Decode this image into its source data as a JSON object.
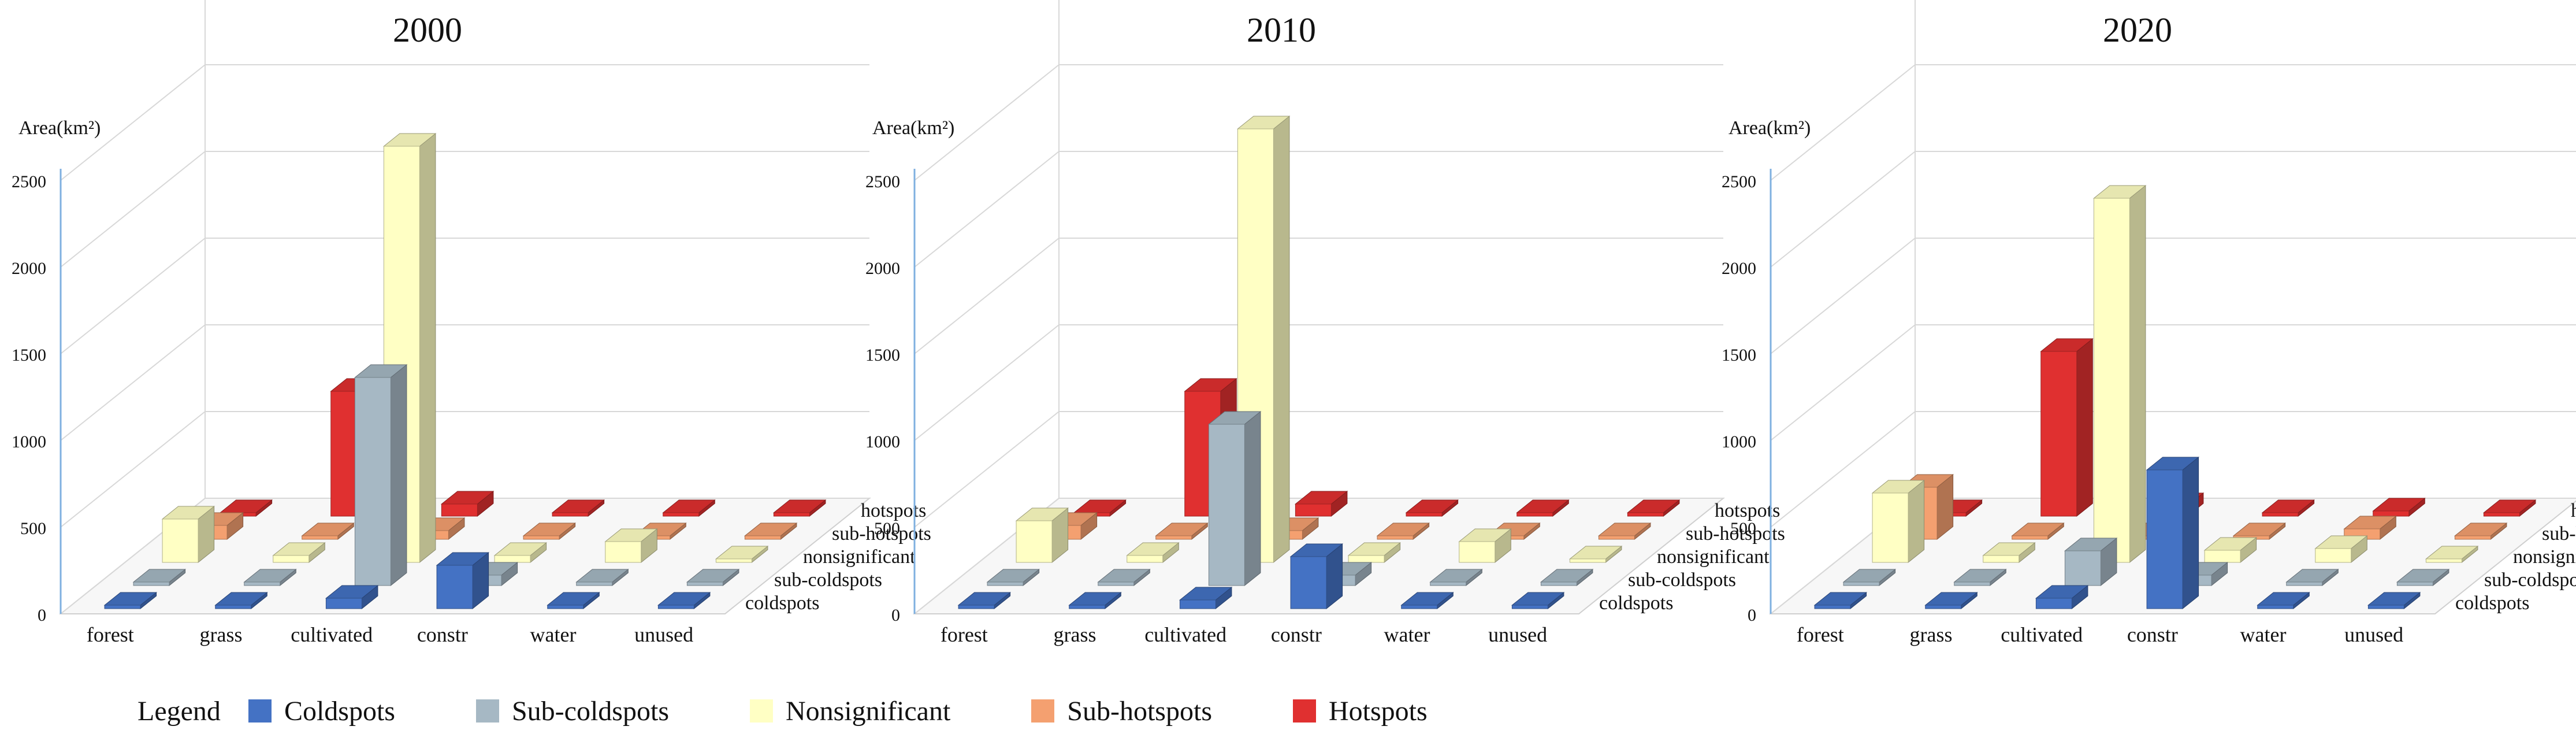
{
  "chart_data": [
    {
      "type": "bar",
      "title": "2000",
      "ylabel": "Area(km²)",
      "ylim": [
        0,
        2500
      ],
      "yticks": [
        0,
        500,
        1000,
        1500,
        2000,
        2500
      ],
      "categories": [
        "forest",
        "grass",
        "cultivated",
        "constr",
        "water",
        "unused"
      ],
      "depth_categories": [
        "coldspots",
        "sub-coldspots",
        "nonsignificant",
        "sub-hotspots",
        "hotspots"
      ],
      "series": [
        {
          "name": "Coldspots",
          "values": [
            5,
            5,
            60,
            250,
            5,
            5
          ]
        },
        {
          "name": "Sub-coldspots",
          "values": [
            5,
            5,
            1200,
            60,
            5,
            5
          ]
        },
        {
          "name": "Nonsignificant",
          "values": [
            250,
            40,
            2400,
            40,
            120,
            20
          ]
        },
        {
          "name": "Sub-hotspots",
          "values": [
            80,
            15,
            50,
            15,
            20,
            5
          ]
        },
        {
          "name": "Hotspots",
          "values": [
            5,
            720,
            70,
            10,
            20,
            5
          ]
        }
      ]
    },
    {
      "type": "bar",
      "title": "2010",
      "ylabel": "Area(km²)",
      "ylim": [
        0,
        2500
      ],
      "yticks": [
        0,
        500,
        1000,
        1500,
        2000,
        2500
      ],
      "categories": [
        "forest",
        "grass",
        "cultivated",
        "constr",
        "water",
        "unused"
      ],
      "depth_categories": [
        "coldspots",
        "sub-coldspots",
        "nonsignificant",
        "sub-hotspots",
        "hotspots"
      ],
      "series": [
        {
          "name": "Coldspots",
          "values": [
            5,
            5,
            50,
            300,
            5,
            5
          ]
        },
        {
          "name": "Sub-coldspots",
          "values": [
            5,
            5,
            930,
            60,
            5,
            5
          ]
        },
        {
          "name": "Nonsignificant",
          "values": [
            240,
            40,
            2500,
            40,
            120,
            20
          ]
        },
        {
          "name": "Sub-hotspots",
          "values": [
            80,
            15,
            50,
            15,
            20,
            5
          ]
        },
        {
          "name": "Hotspots",
          "values": [
            5,
            720,
            70,
            10,
            20,
            5
          ]
        }
      ]
    },
    {
      "type": "bar",
      "title": "2020",
      "ylabel": "Area(km²)",
      "ylim": [
        0,
        2500
      ],
      "yticks": [
        0,
        500,
        1000,
        1500,
        2000,
        2500
      ],
      "categories": [
        "forest",
        "grass",
        "cultivated",
        "constr",
        "water",
        "unused"
      ],
      "depth_categories": [
        "coldspots",
        "sub-coldspots",
        "nonsignificant",
        "sub-hotspots",
        "hotspots"
      ],
      "series": [
        {
          "name": "Coldspots",
          "values": [
            5,
            5,
            60,
            800,
            5,
            5
          ]
        },
        {
          "name": "Sub-coldspots",
          "values": [
            5,
            5,
            200,
            60,
            5,
            5
          ]
        },
        {
          "name": "Nonsignificant",
          "values": [
            400,
            40,
            2100,
            70,
            80,
            20
          ]
        },
        {
          "name": "Sub-hotspots",
          "values": [
            300,
            20,
            15,
            15,
            60,
            5
          ]
        },
        {
          "name": "Hotspots",
          "values": [
            5,
            950,
            60,
            10,
            30,
            5
          ]
        }
      ]
    }
  ],
  "legend": {
    "label": "Legend",
    "items": [
      {
        "name": "Coldspots",
        "color": "#4472c4"
      },
      {
        "name": "Sub-coldspots",
        "color": "#a6b8c4"
      },
      {
        "name": "Nonsignificant",
        "color": "#ffffc4"
      },
      {
        "name": "Sub-hotspots",
        "color": "#f4a070"
      },
      {
        "name": "Hotspots",
        "color": "#e03030"
      }
    ]
  }
}
